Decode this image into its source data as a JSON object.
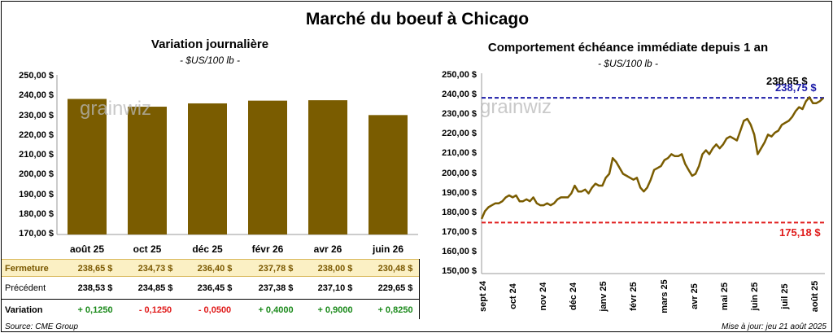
{
  "title": "Marché du boeuf à Chicago",
  "left": {
    "title": "Variation journalière",
    "unit": "- $US/100 lb -"
  },
  "right": {
    "title": "Comportement échéance immédiate depuis 1 an",
    "unit": "- $US/100 lb -",
    "label_last": "238,65 $",
    "label_high": "238,75 $",
    "label_low": "175,18 $"
  },
  "watermark": "grainwiz",
  "table": {
    "row_labels": [
      "Fermeture",
      "Précédent",
      "Variation"
    ],
    "fermeture": [
      "238,65 $",
      "234,73 $",
      "236,40 $",
      "237,78 $",
      "238,00 $",
      "230,48 $"
    ],
    "precedent": [
      "238,53 $",
      "234,85 $",
      "236,45 $",
      "237,38 $",
      "237,10 $",
      "229,65 $"
    ],
    "variation": [
      "+ 0,1250",
      "- 0,1250",
      "- 0,0500",
      "+ 0,4000",
      "+ 0,9000",
      "+ 0,8250"
    ]
  },
  "footer": {
    "source": "Source: CME Group",
    "update": "Mise à jour: jeu 21 août 2025"
  },
  "colors": {
    "bar": "#7a5c00",
    "line": "#7a5c00",
    "high": "#1c1ca8",
    "low": "#e01b1b",
    "positive": "#1b8a1b",
    "negative": "#e01b1b"
  },
  "chart_data": [
    {
      "type": "bar",
      "title": "Variation journalière",
      "categories": [
        "août 25",
        "oct 25",
        "déc 25",
        "févr 26",
        "avr 26",
        "juin 26"
      ],
      "values": [
        238.65,
        234.73,
        236.4,
        237.78,
        238.0,
        230.48
      ],
      "ylim": [
        170,
        250
      ],
      "yticks": [
        "170,00 $",
        "180,00 $",
        "190,00 $",
        "200,00 $",
        "210,00 $",
        "220,00 $",
        "230,00 $",
        "240,00 $",
        "250,00 $"
      ],
      "grid": false
    },
    {
      "type": "line",
      "title": "Comportement échéance immédiate depuis 1 an",
      "x_labels": [
        "sept 24",
        "oct 24",
        "nov 24",
        "déc 24",
        "janv 25",
        "févr 25",
        "mars 25",
        "avr 25",
        "mai 25",
        "juin 25",
        "juil 25",
        "août 25"
      ],
      "ylim": [
        150,
        250
      ],
      "yticks": [
        "150,00 $",
        "160,00 $",
        "170,00 $",
        "180,00 $",
        "190,00 $",
        "200,00 $",
        "210,00 $",
        "220,00 $",
        "230,00 $",
        "240,00 $",
        "250,00 $"
      ],
      "series": [
        {
          "values": [
            177,
            181,
            183,
            184,
            185,
            185,
            186,
            188,
            189,
            188,
            189,
            186,
            186,
            187,
            186,
            188,
            185,
            184,
            184,
            185,
            184,
            185,
            187,
            188,
            188,
            188,
            190,
            194,
            191,
            191,
            192,
            190,
            193,
            195,
            194,
            194,
            198,
            200,
            208,
            206,
            203,
            200,
            199,
            198,
            197,
            198,
            193,
            191,
            193,
            197,
            202,
            203,
            204,
            207,
            208,
            210,
            209,
            209,
            210,
            205,
            202,
            199,
            200,
            204,
            210,
            212,
            210,
            213,
            215,
            213,
            215,
            218,
            219,
            218,
            217,
            222,
            227,
            228,
            225,
            220,
            210,
            213,
            216,
            220,
            219,
            221,
            222,
            225,
            226,
            227,
            229,
            232,
            234,
            233,
            237,
            239,
            236,
            236,
            237,
            238.65
          ]
        }
      ],
      "reference_lines": [
        {
          "value": 238.75,
          "label": "238,75 $",
          "color": "#1c1ca8",
          "style": "dashed"
        },
        {
          "value": 175.18,
          "label": "175,18 $",
          "color": "#e01b1b",
          "style": "dashed"
        }
      ],
      "grid": false
    }
  ]
}
